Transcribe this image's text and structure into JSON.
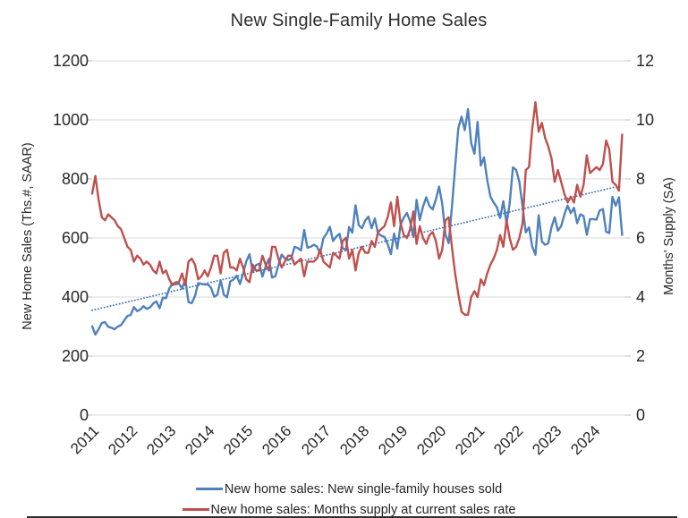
{
  "title": "New Single-Family Home Sales",
  "colors": {
    "blue": "#4F81BD",
    "red": "#C0504D",
    "trendline": "#4477B5",
    "gridline": "#D9D9D9",
    "tick": "#BFBFBF",
    "text": "#262626",
    "background": "#FFFFFF"
  },
  "chart_data": {
    "type": "line",
    "title": "New Single-Family Home Sales",
    "period": "monthly, 2011-01 to 2024-10",
    "x_labels": [
      "2011",
      "2012",
      "2013",
      "2014",
      "2015",
      "2016",
      "2017",
      "2018",
      "2019",
      "2020",
      "2021",
      "2022",
      "2023",
      "2024"
    ],
    "left_axis": {
      "label": "New Home Sales (Ths.#, SAAR)",
      "range": [
        0,
        1200
      ],
      "ticks": [
        0,
        200,
        400,
        600,
        800,
        1000,
        1200
      ]
    },
    "right_axis": {
      "label": "Months' Supply (SA)",
      "range": [
        0,
        12
      ],
      "ticks": [
        0,
        2,
        4,
        6,
        8,
        10,
        12
      ]
    },
    "grid": "horizontal",
    "legend_position": "bottom",
    "series": [
      {
        "name": "New home sales: New single-family houses sold",
        "axis": "left",
        "color": "#4F81BD",
        "values": [
          301,
          273,
          291,
          312,
          315,
          299,
          296,
          291,
          300,
          305,
          321,
          336,
          339,
          366,
          352,
          358,
          369,
          360,
          365,
          378,
          385,
          362,
          398,
          396,
          429,
          445,
          443,
          446,
          429,
          459,
          383,
          379,
          403,
          447,
          445,
          442,
          443,
          432,
          401,
          408,
          457,
          408,
          399,
          453,
          459,
          472,
          444,
          479,
          521,
          545,
          485,
          508,
          513,
          469,
          503,
          529,
          466,
          470,
          508,
          544,
          531,
          525,
          531,
          570,
          566,
          558,
          627,
          567,
          570,
          577,
          571,
          548,
          599,
          615,
          638,
          590,
          605,
          614,
          566,
          559,
          637,
          618,
          711,
          643,
          633,
          659,
          672,
          633,
          666,
          616,
          608,
          604,
          580,
          545,
          615,
          564,
          644,
          669,
          685,
          656,
          604,
          729,
          661,
          706,
          738,
          708,
          697,
          730,
          774,
          716,
          612,
          582,
          704,
          840,
          972,
          1011,
          965,
          1036,
          921,
          885,
          993,
          845,
          873,
          796,
          740,
          720,
          704,
          668,
          725,
          649,
          717,
          839,
          831,
          790,
          707,
          619,
          636,
          571,
          543,
          677,
          588,
          577,
          582,
          636,
          670,
          625,
          640,
          679,
          710,
          684,
          702,
          650,
          680,
          674,
          611,
          664,
          664,
          662,
          693,
          698,
          621,
          617,
          739,
          709,
          738,
          610
        ]
      },
      {
        "name": "New home sales: Months supply at current sales rate",
        "axis": "right",
        "color": "#C0504D",
        "values": [
          7.5,
          8.1,
          7.3,
          6.7,
          6.6,
          6.8,
          6.7,
          6.6,
          6.4,
          6.3,
          6.0,
          5.7,
          5.6,
          5.2,
          5.4,
          5.3,
          5.1,
          5.2,
          5.1,
          4.9,
          4.8,
          5.2,
          4.8,
          4.9,
          4.6,
          4.4,
          4.5,
          4.5,
          4.8,
          4.4,
          5.2,
          5.3,
          5.1,
          4.6,
          4.7,
          4.9,
          4.7,
          5.0,
          5.4,
          5.4,
          4.8,
          5.5,
          5.6,
          5.0,
          5.0,
          4.9,
          5.3,
          5.0,
          4.6,
          4.5,
          5.1,
          4.9,
          4.9,
          5.4,
          5.1,
          4.9,
          5.7,
          5.7,
          5.3,
          5.0,
          5.2,
          5.4,
          5.4,
          5.1,
          5.2,
          5.3,
          4.7,
          5.2,
          5.2,
          5.2,
          5.3,
          5.6,
          5.2,
          5.1,
          5.0,
          5.5,
          5.4,
          5.3,
          5.9,
          6.0,
          5.3,
          5.6,
          4.9,
          5.5,
          5.7,
          5.5,
          5.5,
          5.9,
          5.7,
          6.2,
          6.3,
          6.4,
          6.7,
          7.2,
          6.4,
          7.4,
          6.5,
          6.1,
          6.0,
          6.3,
          6.9,
          5.8,
          6.4,
          6.0,
          5.8,
          6.1,
          6.2,
          5.9,
          5.3,
          5.6,
          6.6,
          6.7,
          5.7,
          4.8,
          4.1,
          3.5,
          3.4,
          3.4,
          4.0,
          4.2,
          4.0,
          4.6,
          4.4,
          4.8,
          5.1,
          5.3,
          5.6,
          6.1,
          5.7,
          6.6,
          6.0,
          5.6,
          5.7,
          6.0,
          6.5,
          8.3,
          8.4,
          9.7,
          10.6,
          9.6,
          9.9,
          9.4,
          9.1,
          8.7,
          7.9,
          8.3,
          7.9,
          7.5,
          7.2,
          7.4,
          7.2,
          7.8,
          7.4,
          7.8,
          8.8,
          8.2,
          8.3,
          8.4,
          8.3,
          8.5,
          9.3,
          9.0,
          7.9,
          7.8,
          7.6,
          9.5
        ]
      }
    ],
    "trendline": {
      "applies_to": "left-axis series",
      "style": "dotted",
      "color": "#4477B5",
      "start_value": 355,
      "end_value": 778
    }
  },
  "legend": {
    "items": [
      {
        "label": "New home sales: New single-family houses sold",
        "color": "#4F81BD"
      },
      {
        "label": "New home sales: Months supply at current sales rate",
        "color": "#C0504D"
      }
    ]
  }
}
